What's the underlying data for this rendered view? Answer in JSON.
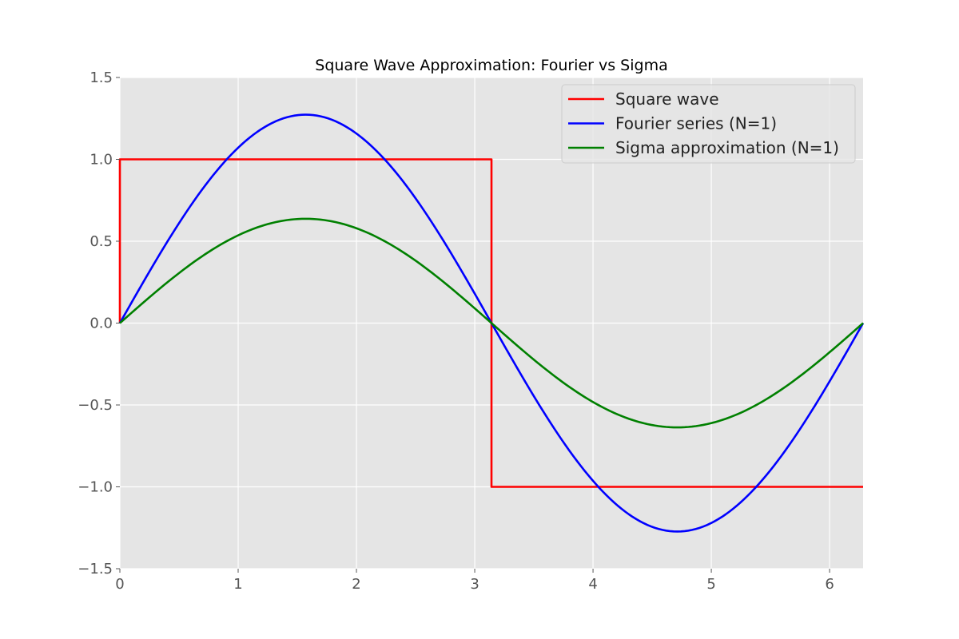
{
  "chart_data": {
    "type": "line",
    "title": "Square Wave Approximation: Fourier vs Sigma",
    "xlabel": "",
    "ylabel": "",
    "xlim": [
      0,
      6.283185307179586
    ],
    "ylim": [
      -1.5,
      1.5
    ],
    "xticks": [
      0,
      1,
      2,
      3,
      4,
      5,
      6
    ],
    "xtick_labels": [
      "0",
      "1",
      "2",
      "3",
      "4",
      "5",
      "6"
    ],
    "yticks": [
      -1.5,
      -1.0,
      -0.5,
      0.0,
      0.5,
      1.0,
      1.5
    ],
    "ytick_labels": [
      "−1.5",
      "−1.0",
      "−0.5",
      "0.0",
      "0.5",
      "1.0",
      "1.5"
    ],
    "grid": true,
    "legend_position": "top-right",
    "series": [
      {
        "name": "Square wave",
        "color": "#ff0000",
        "x": [
          0,
          0,
          3.1416,
          3.1416,
          6.2832
        ],
        "y": [
          0,
          1.0,
          1.0,
          -1.0,
          -1.0
        ]
      },
      {
        "name": "Fourier series (N=1)",
        "color": "#0000ff",
        "x": [
          0,
          0.3927,
          0.7854,
          1.1781,
          1.5708,
          1.9635,
          2.3562,
          2.7489,
          3.1416,
          3.5343,
          3.927,
          4.3197,
          4.7124,
          5.1051,
          5.4978,
          5.8905,
          6.2832
        ],
        "y": [
          0,
          0.487,
          0.9,
          1.176,
          1.273,
          1.176,
          0.9,
          0.487,
          0,
          -0.487,
          -0.9,
          -1.176,
          -1.273,
          -1.176,
          -0.9,
          -0.487,
          0
        ]
      },
      {
        "name": "Sigma approximation (N=1)",
        "color": "#008000",
        "x": [
          0,
          0.3927,
          0.7854,
          1.1781,
          1.5708,
          1.9635,
          2.3562,
          2.7489,
          3.1416,
          3.5343,
          3.927,
          4.3197,
          4.7124,
          5.1051,
          5.4978,
          5.8905,
          6.2832
        ],
        "y": [
          0,
          0.244,
          0.45,
          0.588,
          0.637,
          0.588,
          0.45,
          0.244,
          0,
          -0.244,
          -0.45,
          -0.588,
          -0.637,
          -0.588,
          -0.45,
          -0.244,
          0
        ]
      }
    ]
  }
}
